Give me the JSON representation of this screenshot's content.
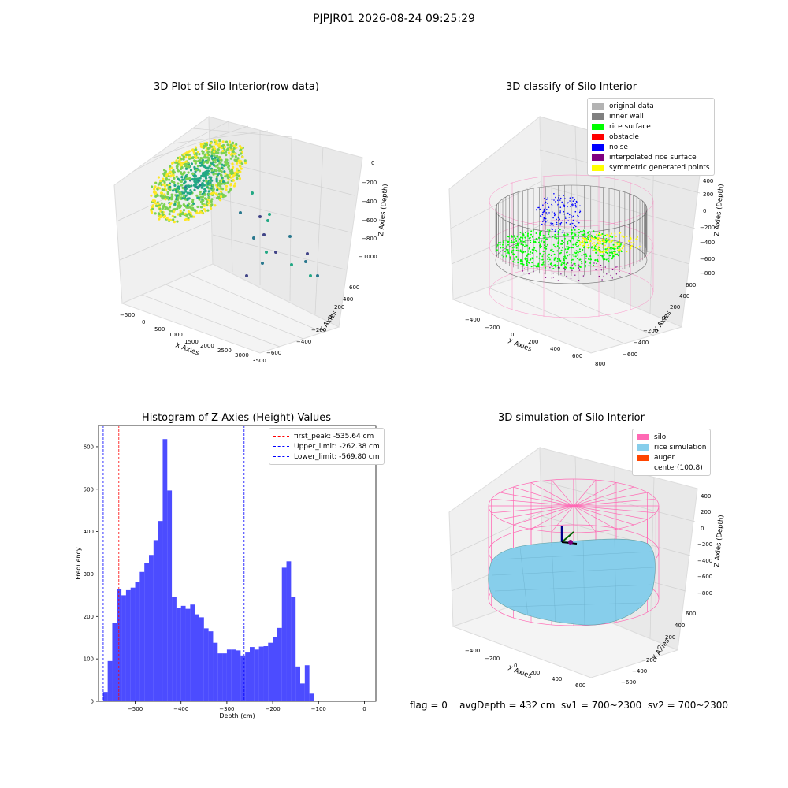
{
  "suptitle": "PJPJR01 2026-08-24 09:25:29",
  "footer": "flag = 0    avgDepth = 432 cm  sv1 = 700~2300  sv2 = 700~2300",
  "chart_data": [
    {
      "type": "scatter",
      "title": "3D Plot of Silo Interior(row data)",
      "xlabel": "X Axies",
      "ylabel": "Y Axies",
      "zlabel": "Z Axies (Depth)",
      "x_ticks": [
        "−500",
        "0",
        "500",
        "1000",
        "1500",
        "2000",
        "2500",
        "3000",
        "3500"
      ],
      "y_ticks": [
        "600",
        "400",
        "200",
        "0",
        "−200",
        "−400",
        "−600"
      ],
      "z_ticks": [
        "0",
        "−200",
        "−400",
        "−600",
        "−800",
        "−1000"
      ],
      "colormap": [
        "#fde725",
        "#7ad151",
        "#22a884",
        "#2a788e",
        "#414487"
      ]
    },
    {
      "type": "scatter",
      "title": "3D classify of Silo Interior",
      "xlabel": "X Axies",
      "ylabel": "Y Axies",
      "zlabel": "Z Axies (Depth)",
      "x_ticks": [
        "−400",
        "−200",
        "0",
        "200",
        "400",
        "600",
        "800"
      ],
      "y_ticks": [
        "600",
        "400",
        "200",
        "0",
        "−200",
        "−400",
        "−600"
      ],
      "z_ticks": [
        "400",
        "200",
        "0",
        "−200",
        "−400",
        "−600",
        "−800"
      ],
      "legend": [
        {
          "label": "original data",
          "color": "#b3b3b3"
        },
        {
          "label": "inner wall",
          "color": "#808080"
        },
        {
          "label": "rice surface",
          "color": "#00ff00"
        },
        {
          "label": "obstacle",
          "color": "#ff0000"
        },
        {
          "label": "noise",
          "color": "#0000ff"
        },
        {
          "label": "interpolated rice surface",
          "color": "#800080"
        },
        {
          "label": "symmetric generated points",
          "color": "#ffff00"
        }
      ]
    },
    {
      "type": "bar",
      "title": "Histogram of Z-Axies (Height) Values",
      "xlabel": "Depth (cm)",
      "ylabel": "Frequency",
      "xlim": [
        -580,
        25
      ],
      "ylim": [
        0,
        650
      ],
      "x_ticks": [
        -500,
        -400,
        -300,
        -200,
        -100,
        0
      ],
      "y_ticks": [
        0,
        100,
        200,
        300,
        400,
        500,
        600
      ],
      "bin_edges": [
        -570,
        -560,
        -550,
        -540,
        -530,
        -520,
        -510,
        -500,
        -490,
        -480,
        -470,
        -460,
        -450,
        -440,
        -430,
        -420,
        -410,
        -400,
        -390,
        -380,
        -370,
        -360,
        -350,
        -340,
        -330,
        -320,
        -310,
        -300,
        -290,
        -280,
        -270,
        -260,
        -250,
        -240,
        -230,
        -220,
        -210,
        -200,
        -190,
        -180,
        -170,
        -160,
        -150,
        -140,
        -130,
        -120,
        -110,
        -100,
        -90,
        -80,
        -70,
        -60,
        -50,
        -40,
        -30,
        -20,
        -10,
        0,
        10
      ],
      "values": [
        22,
        95,
        185,
        265,
        250,
        262,
        268,
        282,
        305,
        325,
        345,
        380,
        425,
        618,
        497,
        247,
        220,
        225,
        218,
        228,
        205,
        198,
        172,
        165,
        138,
        113,
        113,
        122,
        122,
        120,
        108,
        115,
        128,
        122,
        129,
        130,
        138,
        152,
        173,
        315,
        330,
        247,
        82,
        42,
        85,
        18,
        0,
        0,
        0,
        0,
        0,
        0,
        0,
        0,
        0,
        0,
        0,
        0
      ],
      "bar_color": "#0000ff",
      "vlines": [
        {
          "x": -535.64,
          "color": "#ff0000",
          "label": "first_peak: -535.64 cm"
        },
        {
          "x": -262.38,
          "color": "#0000ff",
          "label": "Upper_limit: -262.38 cm"
        },
        {
          "x": -569.8,
          "color": "#0000ff",
          "label": "Lower_limit: -569.80 cm"
        }
      ]
    },
    {
      "type": "area",
      "title": "3D simulation of Silo Interior",
      "xlabel": "X Axies",
      "ylabel": "Y Axies",
      "zlabel": "Z Axies (Depth)",
      "x_ticks": [
        "−400",
        "−200",
        "0",
        "200",
        "400",
        "600"
      ],
      "y_ticks": [
        "600",
        "400",
        "200",
        "0",
        "−200",
        "−400",
        "−600"
      ],
      "z_ticks": [
        "400",
        "200",
        "0",
        "−200",
        "−400",
        "−600",
        "−800"
      ],
      "legend": [
        {
          "label": "silo",
          "color": "#ff69b4"
        },
        {
          "label": "rice simulation",
          "color": "#87ceeb"
        },
        {
          "label": "auger",
          "color": "#ff4500"
        },
        {
          "label": "center(100,8)",
          "color": "#ffffff"
        }
      ]
    }
  ]
}
